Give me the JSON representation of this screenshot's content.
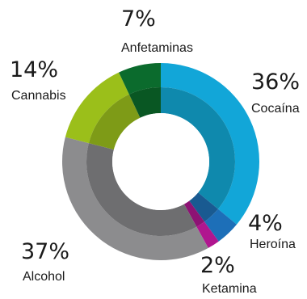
{
  "chart_data": {
    "type": "pie",
    "title": "",
    "slices": [
      {
        "label": "Cocaína",
        "value": 36,
        "display": "36%",
        "color": "#12a6d8",
        "inner_color": "#0f89ad"
      },
      {
        "label": "Heroína",
        "value": 4,
        "display": "4%",
        "color": "#1d6fb8",
        "inner_color": "#195a91"
      },
      {
        "label": "Ketamina",
        "value": 2,
        "display": "2%",
        "color": "#b0168f",
        "inner_color": "#8d1374"
      },
      {
        "label": "Alcohol",
        "value": 37,
        "display": "37%",
        "color": "#8c8c8e",
        "inner_color": "#6e6e70"
      },
      {
        "label": "Cannabis",
        "value": 14,
        "display": "14%",
        "color": "#9bbf1a",
        "inner_color": "#7e9b17"
      },
      {
        "label": "Anfetaminas",
        "value": 7,
        "display": "7%",
        "color": "#0b6b2d",
        "inner_color": "#095723"
      }
    ]
  }
}
